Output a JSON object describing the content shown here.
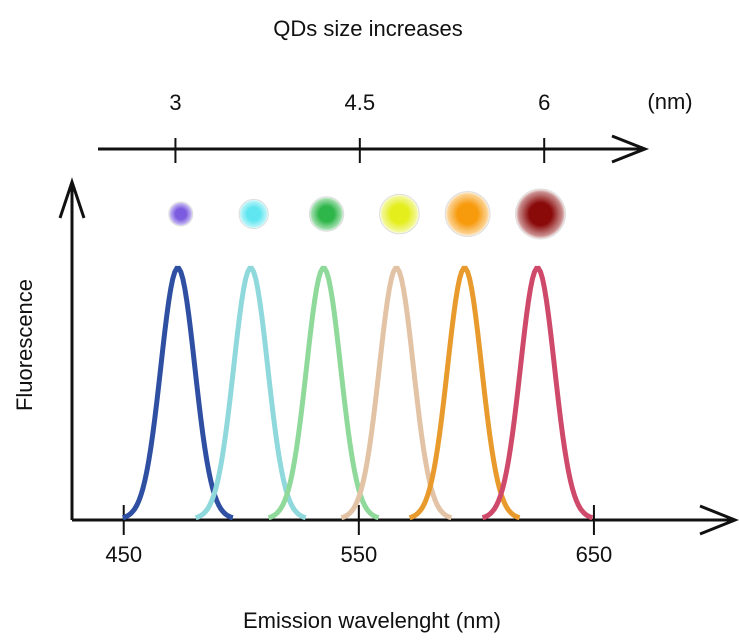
{
  "chart_data": {
    "type": "peaks",
    "title": "QDs size increases",
    "xlabel": "Emission wavelenght (nm)",
    "ylabel": "Fluorescence",
    "xlim": [
      428,
      710
    ],
    "xticks": [
      450,
      550,
      650
    ],
    "x2lim": [
      2.37,
      6.82
    ],
    "x2ticks": [
      3,
      4.5,
      6
    ],
    "x2label": "(nm)",
    "series": [
      {
        "color": "#2f4fa3",
        "dot_color": "#7b5ce0",
        "center": 473
      },
      {
        "color": "#8fd8dc",
        "dot_color": "#5fe6f0",
        "center": 504
      },
      {
        "color": "#8fd99a",
        "dot_color": "#2fb64a",
        "center": 535
      },
      {
        "color": "#e3c3a5",
        "dot_color": "#e4ee1c",
        "center": 566
      },
      {
        "color": "#e89a2c",
        "dot_color": "#f79a0c",
        "center": 595
      },
      {
        "color": "#cf4a6a",
        "dot_color": "#8a0a0a",
        "center": 626
      }
    ]
  }
}
